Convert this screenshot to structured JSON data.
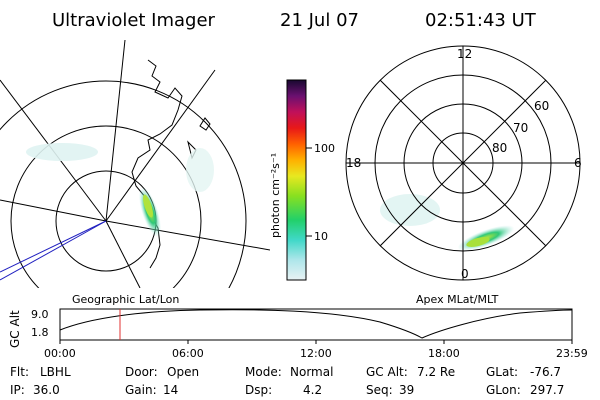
{
  "header": {
    "title": "Ultraviolet Imager",
    "date": "21 Jul 07",
    "time": "02:51:43 UT"
  },
  "colorbar": {
    "label": "photon cm⁻²s⁻¹",
    "ticks": [
      "100",
      "10"
    ]
  },
  "apex_plot": {
    "mlt_labels": {
      "top": "12",
      "left": "18",
      "right": "6",
      "bottom": "0"
    },
    "mlat_labels": [
      "60",
      "70",
      "80"
    ]
  },
  "map_labels": {
    "left": "Geographic Lat/Lon",
    "right": "Apex MLat/MLT"
  },
  "altitude_plot": {
    "ylabel": "GC Alt",
    "yticks": [
      "9.0",
      "1.8"
    ],
    "xticks": [
      "00:00",
      "06:00",
      "12:00",
      "18:00",
      "23:59"
    ],
    "marker_color": "#e03030"
  },
  "status": {
    "row1": [
      {
        "key": "Flt:",
        "value": "LBHL"
      },
      {
        "key": "Door:",
        "value": "Open"
      },
      {
        "key": "Mode:",
        "value": "Normal"
      },
      {
        "key": "GC Alt:",
        "value": "7.2 Re"
      },
      {
        "key": "GLat:",
        "value": "-76.7"
      }
    ],
    "row2": [
      {
        "key": "IP:",
        "value": "36.0"
      },
      {
        "key": "Gain:",
        "value": "14"
      },
      {
        "key": "Dsp:",
        "value": "4.2"
      },
      {
        "key": "Seq:",
        "value": "39"
      },
      {
        "key": "GLon:",
        "value": "297.7"
      }
    ]
  }
}
